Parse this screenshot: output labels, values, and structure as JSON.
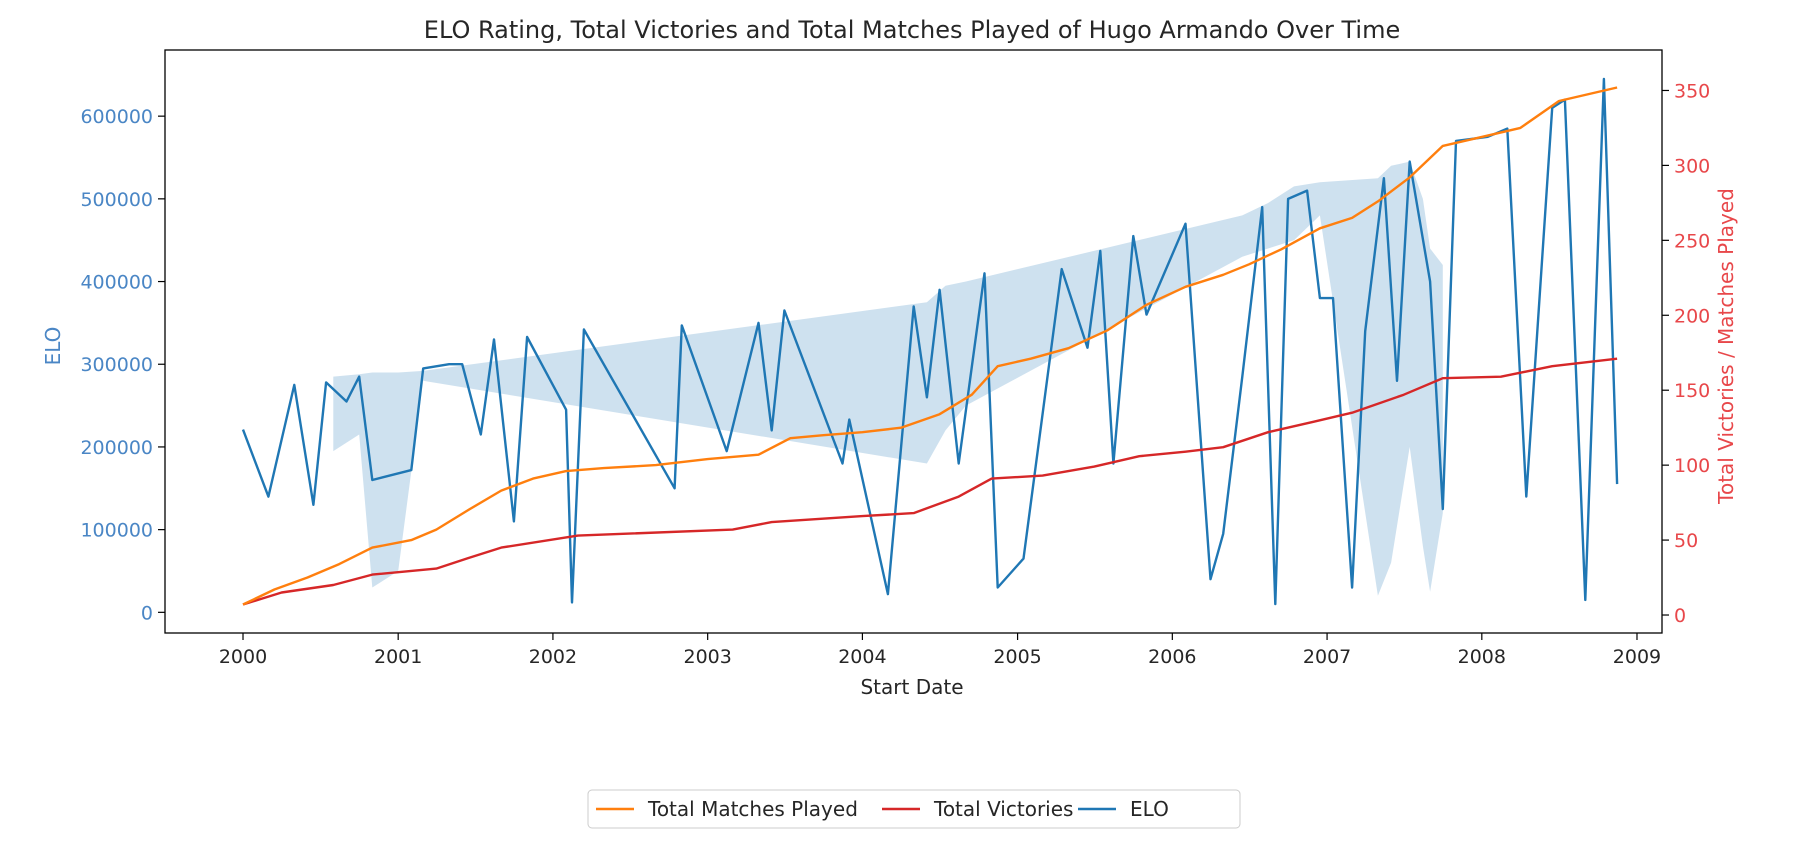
{
  "chart_data": {
    "type": "line",
    "title": "ELO Rating, Total Victories and Total Matches Played of Hugo Armando Over Time",
    "xlabel": "Start Date",
    "ylabel_left": "ELO",
    "ylabel_right": "Total Victories / Matches Played",
    "xlim": [
      "1999-07-01",
      "2009-03-01"
    ],
    "ylim_left": [
      -25000,
      680000
    ],
    "ylim_right": [
      -12,
      377
    ],
    "x_ticks": [
      "2000",
      "2001",
      "2002",
      "2003",
      "2004",
      "2005",
      "2006",
      "2007",
      "2008",
      "2009"
    ],
    "y_ticks_left": [
      0,
      100000,
      200000,
      300000,
      400000,
      500000,
      600000
    ],
    "y_ticks_right": [
      0,
      50,
      100,
      150,
      200,
      250,
      300,
      350
    ],
    "grid": false,
    "legend_position": "bottom-center",
    "colors": {
      "elo": "#1f77b4",
      "victories": "#d62728",
      "matches": "#ff7f0e",
      "left_axis": "#4a86c5",
      "right_axis": "#e8474a",
      "band": "#1f77b4"
    },
    "legend": [
      "Total Matches Played",
      "Total Victories",
      "ELO"
    ],
    "series": [
      {
        "name": "Total Matches Played",
        "axis": "right",
        "x": [
          "2000-01-01",
          "2000-03-15",
          "2000-06-01",
          "2000-08-15",
          "2000-11-01",
          "2001-02-01",
          "2001-04-01",
          "2001-06-15",
          "2001-09-01",
          "2001-11-15",
          "2002-02-01",
          "2002-05-01",
          "2002-09-01",
          "2003-01-01",
          "2003-05-01",
          "2003-07-15",
          "2003-10-01",
          "2004-01-01",
          "2004-04-01",
          "2004-07-01",
          "2004-09-15",
          "2004-11-15",
          "2005-02-01",
          "2005-05-01",
          "2005-08-01",
          "2005-11-01",
          "2006-02-01",
          "2006-05-01",
          "2006-07-01",
          "2006-09-15",
          "2006-12-15",
          "2007-03-01",
          "2007-05-01",
          "2007-07-15",
          "2007-10-01",
          "2008-01-01",
          "2008-04-01",
          "2008-07-01",
          "2008-11-15"
        ],
        "y": [
          7,
          17,
          25,
          34,
          45,
          50,
          57,
          70,
          83,
          91,
          96,
          98,
          100,
          104,
          107,
          118,
          120,
          122,
          125,
          134,
          147,
          166,
          171,
          178,
          190,
          207,
          219,
          227,
          234,
          244,
          258,
          265,
          276,
          292,
          313,
          319,
          325,
          343,
          352
        ]
      },
      {
        "name": "Total Victories",
        "axis": "right",
        "x": [
          "2000-01-01",
          "2000-04-01",
          "2000-08-01",
          "2000-11-01",
          "2001-04-01",
          "2001-06-15",
          "2001-09-01",
          "2002-03-01",
          "2003-03-01",
          "2003-06-01",
          "2004-01-01",
          "2004-05-01",
          "2004-08-15",
          "2004-11-01",
          "2005-03-01",
          "2005-07-01",
          "2005-10-15",
          "2006-02-01",
          "2006-05-01",
          "2006-08-15",
          "2006-12-01",
          "2007-03-01",
          "2007-07-01",
          "2007-10-01",
          "2008-02-15",
          "2008-06-15",
          "2008-11-15"
        ],
        "y": [
          7,
          15,
          20,
          27,
          31,
          38,
          45,
          53,
          57,
          62,
          66,
          68,
          79,
          91,
          93,
          99,
          106,
          109,
          112,
          122,
          129,
          135,
          147,
          158,
          159,
          166,
          171
        ]
      },
      {
        "name": "ELO",
        "axis": "left",
        "x": [
          "2000-01-01",
          "2000-03-01",
          "2000-05-01",
          "2000-06-15",
          "2000-07-15",
          "2000-09-01",
          "2000-10-01",
          "2000-11-01",
          "2001-02-01",
          "2001-03-01",
          "2001-05-01",
          "2001-06-01",
          "2001-07-15",
          "2001-08-15",
          "2001-10-01",
          "2001-11-01",
          "2002-02-01",
          "2002-02-15",
          "2002-03-15",
          "2002-10-15",
          "2002-11-01",
          "2003-02-15",
          "2003-05-01",
          "2003-06-01",
          "2003-07-01",
          "2003-11-15",
          "2003-12-01",
          "2004-03-01",
          "2004-05-01",
          "2004-06-01",
          "2004-07-01",
          "2004-08-15",
          "2004-10-15",
          "2004-11-15",
          "2005-01-15",
          "2005-04-15",
          "2005-06-15",
          "2005-07-15",
          "2005-08-15",
          "2005-10-01",
          "2005-11-01",
          "2006-02-01",
          "2006-04-01",
          "2006-05-01",
          "2006-06-15",
          "2006-08-01",
          "2006-09-01",
          "2006-10-01",
          "2006-11-15",
          "2006-12-15",
          "2007-01-15",
          "2007-03-01",
          "2007-04-01",
          "2007-05-15",
          "2007-06-15",
          "2007-07-15",
          "2007-09-01",
          "2007-10-01",
          "2007-11-01",
          "2008-01-15",
          "2008-03-01",
          "2008-04-15",
          "2008-06-15",
          "2008-07-15",
          "2008-09-01",
          "2008-10-15",
          "2008-11-15"
        ],
        "y": [
          221000,
          140000,
          275000,
          130000,
          278000,
          255000,
          285000,
          160000,
          172000,
          295000,
          300000,
          300000,
          215000,
          330000,
          110000,
          333000,
          245000,
          12000,
          342000,
          150000,
          347000,
          195000,
          350000,
          220000,
          365000,
          180000,
          233000,
          22000,
          370000,
          260000,
          390000,
          180000,
          410000,
          30000,
          65000,
          415000,
          320000,
          437000,
          180000,
          455000,
          360000,
          470000,
          40000,
          95000,
          285000,
          490000,
          10000,
          500000,
          510000,
          380000,
          380000,
          30000,
          340000,
          525000,
          280000,
          545000,
          400000,
          125000,
          570000,
          575000,
          585000,
          140000,
          610000,
          620000,
          15000,
          645000,
          155000
        ]
      }
    ],
    "confidence_band": {
      "series": "ELO",
      "x": [
        "2000-08-01",
        "2000-10-01",
        "2000-11-01",
        "2001-01-01",
        "2001-03-01",
        "2004-06-01",
        "2004-07-15",
        "2004-09-01",
        "2006-06-15",
        "2006-08-15",
        "2006-10-15",
        "2006-12-15",
        "2007-05-01",
        "2007-06-01",
        "2007-07-15",
        "2007-08-15",
        "2007-09-01",
        "2007-10-01"
      ],
      "upper": [
        285000,
        288000,
        290000,
        290000,
        292000,
        375000,
        395000,
        400000,
        480000,
        495000,
        515000,
        520000,
        525000,
        540000,
        545000,
        500000,
        440000,
        420000
      ],
      "lower": [
        195000,
        215000,
        30000,
        50000,
        280000,
        180000,
        220000,
        250000,
        430000,
        440000,
        450000,
        480000,
        20000,
        60000,
        200000,
        80000,
        25000,
        120000
      ]
    }
  }
}
